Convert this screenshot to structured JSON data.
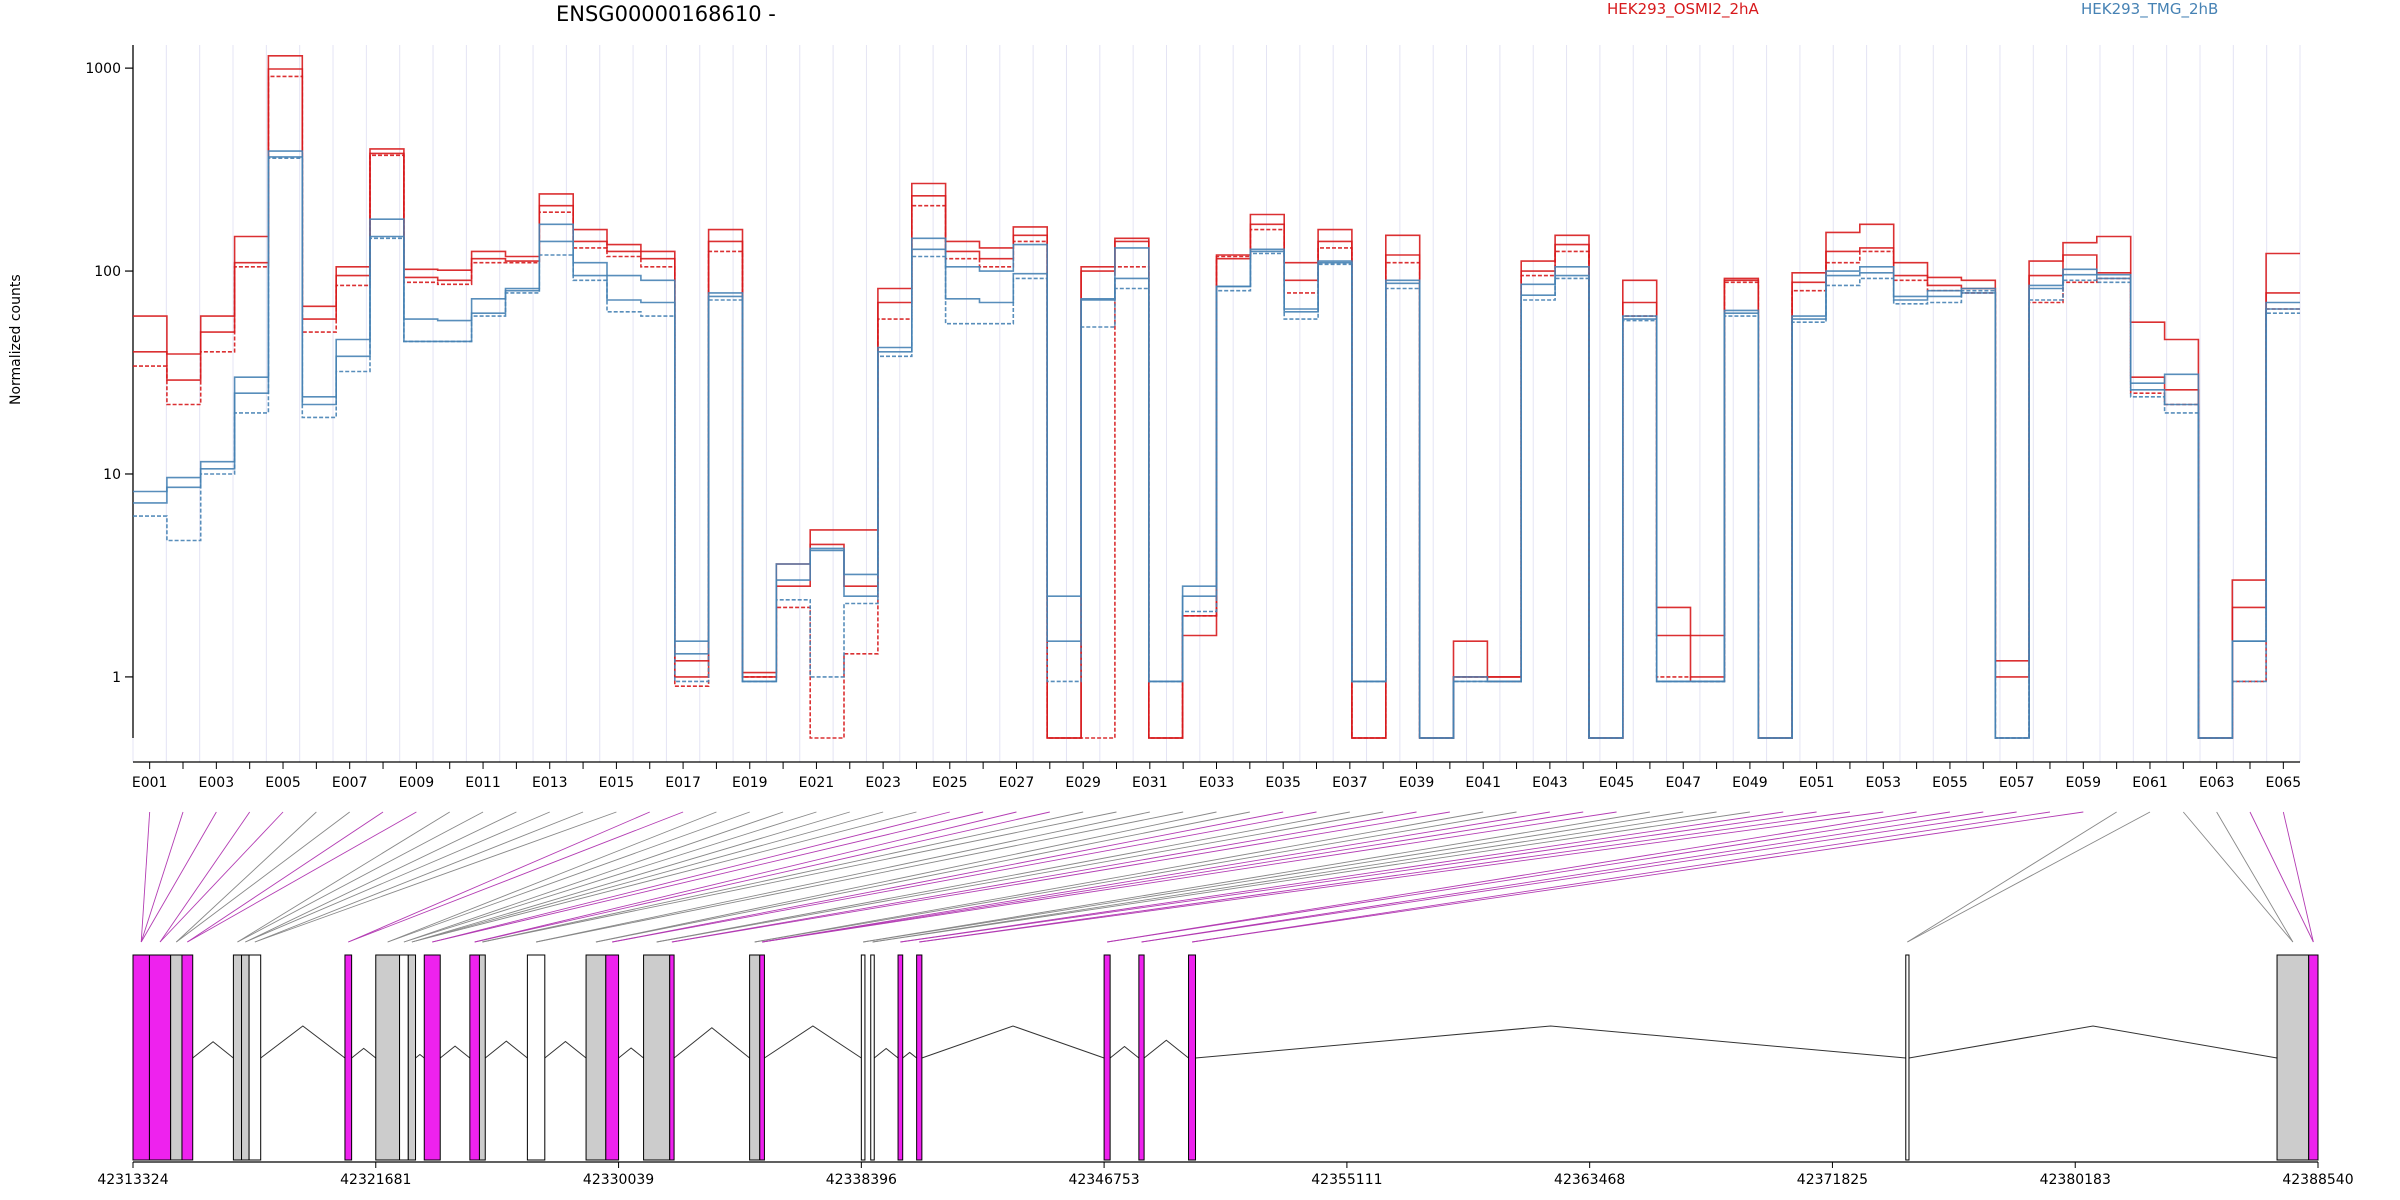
{
  "chart_data": {
    "type": "line",
    "title": "ENSG00000168610 -",
    "xlabel": "",
    "ylabel": "Normalized counts",
    "yscale": "log",
    "ylim": [
      0.5,
      1300
    ],
    "y_ticks": [
      1,
      10,
      100,
      1000
    ],
    "y_tick_labels": [
      "1",
      "10",
      "100",
      "1000"
    ],
    "grid": false,
    "legend_placement": "top-right",
    "exon_labels": [
      "E001",
      "E003",
      "E005",
      "E007",
      "E009",
      "E011",
      "E013",
      "E015",
      "E017",
      "E019",
      "E021",
      "E023",
      "E025",
      "E027",
      "E029",
      "E031",
      "E033",
      "E035",
      "E037",
      "E039",
      "E041",
      "E043",
      "E045",
      "E047",
      "E049",
      "E051",
      "E053",
      "E055",
      "E057",
      "E059",
      "E061",
      "E063",
      "E065"
    ],
    "series": [
      {
        "name": "HEK293_OSMI2_2hA",
        "color": "#d7191c",
        "replicates": [
          [
            60,
            39,
            60,
            148,
            1150,
            67,
            105,
            400,
            102,
            101,
            125,
            118,
            240,
            160,
            135,
            125,
            1.2,
            160,
            1.05,
            3.6,
            5.3,
            5.3,
            82,
            270,
            140,
            130,
            165,
            0.5,
            105,
            145,
            0.5,
            1.6,
            120,
            190,
            110,
            160,
            0.5,
            150,
            0.5,
            1.5,
            1.0,
            112,
            150,
            0.5,
            90,
            2.2,
            1.6,
            92,
            0.5,
            98,
            155,
            170,
            110,
            93,
            90,
            1.2,
            112,
            138,
            148,
            56,
            46,
            0.5,
            3.0,
            122
          ],
          [
            40,
            29,
            50,
            110,
            990,
            58,
            95,
            380,
            93,
            90,
            115,
            112,
            210,
            140,
            125,
            115,
            1.0,
            140,
            1.0,
            2.8,
            4.5,
            2.8,
            70,
            235,
            125,
            115,
            150,
            0.5,
            100,
            140,
            0.5,
            2.0,
            115,
            170,
            90,
            140,
            0.5,
            120,
            0.5,
            1.0,
            1.0,
            100,
            135,
            0.5,
            70,
            1.6,
            1.0,
            90,
            0.5,
            88,
            125,
            130,
            95,
            85,
            82,
            1.0,
            95,
            120,
            98,
            30,
            26,
            0.5,
            2.2,
            78
          ],
          [
            34,
            22,
            40,
            105,
            910,
            50,
            85,
            372,
            88,
            86,
            110,
            110,
            195,
            130,
            118,
            105,
            0.9,
            125,
            1.0,
            2.2,
            0.5,
            1.3,
            58,
            210,
            115,
            105,
            140,
            0.5,
            0.5,
            105,
            0.5,
            2.0,
            118,
            160,
            78,
            130,
            0.5,
            110,
            0.5,
            1.0,
            0.95,
            95,
            125,
            0.5,
            60,
            1.0,
            0.95,
            88,
            0.5,
            80,
            110,
            125,
            90,
            80,
            78,
            0.5,
            70,
            88,
            92,
            25,
            22,
            0.5,
            0.95,
            65
          ]
        ]
      },
      {
        "name": "HEK293_TMG_2hB",
        "color": "#4682b4",
        "replicates": [
          [
            8.2,
            9.6,
            11.5,
            30,
            390,
            24,
            46,
            180,
            58,
            57,
            73,
            82,
            170,
            110,
            95,
            90,
            1.5,
            78,
            0.95,
            3.6,
            4.3,
            3.2,
            42,
            145,
            105,
            100,
            135,
            2.5,
            73,
            130,
            0.95,
            2.8,
            84,
            128,
            65,
            112,
            0.95,
            90,
            0.5,
            1.0,
            0.95,
            86,
            105,
            0.5,
            60,
            0.95,
            0.95,
            64,
            0.5,
            60,
            100,
            105,
            75,
            80,
            78,
            0.5,
            85,
            102,
            96,
            28,
            31,
            0.5,
            1.5,
            70
          ],
          [
            7.2,
            8.6,
            10.6,
            25,
            365,
            22,
            38,
            148,
            45,
            45,
            62,
            80,
            140,
            95,
            72,
            70,
            1.3,
            75,
            0.95,
            3.0,
            4.2,
            2.5,
            40,
            128,
            73,
            70,
            97,
            1.5,
            72,
            92,
            0.95,
            2.5,
            84,
            125,
            63,
            110,
            0.95,
            87,
            0.5,
            0.95,
            0.95,
            76,
            95,
            0.5,
            58,
            0.95,
            0.95,
            62,
            0.5,
            58,
            95,
            98,
            72,
            75,
            82,
            0.5,
            82,
            96,
            92,
            26,
            22,
            0.5,
            1.5,
            65
          ],
          [
            6.2,
            4.7,
            10.0,
            20,
            360,
            19,
            32,
            145,
            45,
            45,
            60,
            78,
            120,
            90,
            63,
            60,
            0.95,
            72,
            0.95,
            2.4,
            1.0,
            2.3,
            38,
            118,
            55,
            55,
            92,
            0.95,
            53,
            82,
            0.95,
            2.1,
            80,
            122,
            58,
            108,
            0.95,
            82,
            0.5,
            0.95,
            0.95,
            72,
            92,
            0.5,
            57,
            0.95,
            0.95,
            60,
            0.5,
            56,
            85,
            92,
            69,
            70,
            80,
            0.5,
            72,
            90,
            88,
            24,
            20,
            0.5,
            0.95,
            62
          ]
        ]
      }
    ],
    "gene_model": {
      "coordinate_ticks": [
        "42313324",
        "42321681",
        "42330039",
        "42338396",
        "42346753",
        "42355111",
        "42363468",
        "42371825",
        "42380183",
        "42388540"
      ],
      "genome_start": 42313324,
      "genome_end": 42388540,
      "highlight_color": "#ee22ee",
      "feature_color": "#cccccc"
    }
  }
}
